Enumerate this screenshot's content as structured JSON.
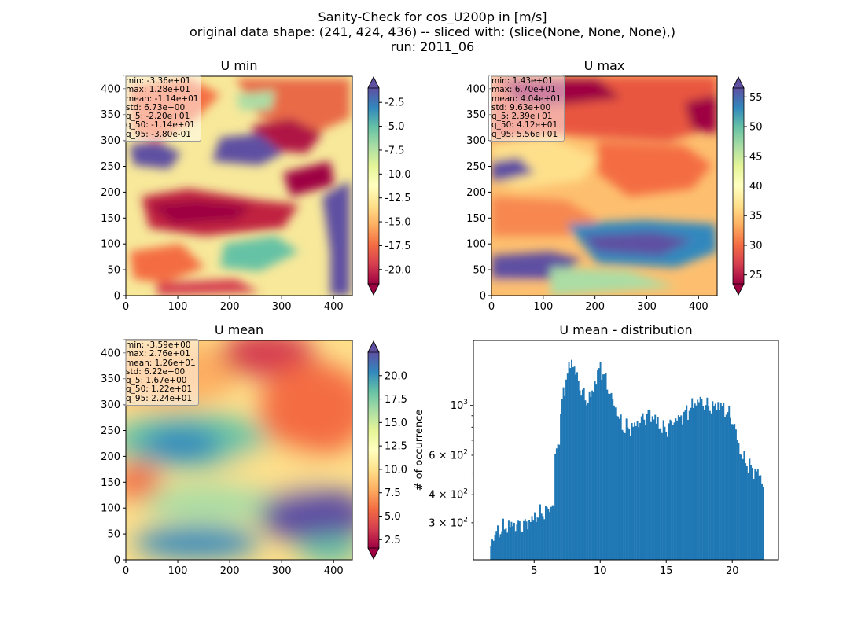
{
  "suptitle": {
    "line1": "Sanity-Check for cos_U200p in [m/s]",
    "line2": "original data shape: (241, 424, 436) -- sliced with: (slice(None, None, None),)",
    "line3": "run: 2011_06"
  },
  "chart_data": [
    {
      "type": "heatmap",
      "title": "U min",
      "xlim": [
        0,
        436
      ],
      "ylim": [
        0,
        424
      ],
      "xticks": [
        0,
        100,
        200,
        300,
        400
      ],
      "yticks": [
        0,
        50,
        100,
        150,
        200,
        250,
        300,
        350,
        400
      ],
      "colormap": "Spectral",
      "colorbar": {
        "vmin": -21.5,
        "vmax": -1.0,
        "ticks": [
          "-2.5",
          "-5.0",
          "-7.5",
          "-10.0",
          "-12.5",
          "-15.0",
          "-17.5",
          "-20.0"
        ],
        "tick_values": [
          -2.5,
          -5.0,
          -7.5,
          -10.0,
          -12.5,
          -15.0,
          -17.5,
          -20.0
        ],
        "extend": "both"
      },
      "stats": [
        "min: -3.36e+01",
        "max: 1.28e+01",
        "mean: -1.14e+01",
        "std: 6.73e+00",
        "q_5: -2.20e+01",
        "q_50: -1.14e+01",
        "q_95: -3.80e-01"
      ]
    },
    {
      "type": "heatmap",
      "title": "U max",
      "xlim": [
        0,
        436
      ],
      "ylim": [
        0,
        424
      ],
      "xticks": [
        0,
        100,
        200,
        300,
        400
      ],
      "yticks": [
        0,
        50,
        100,
        150,
        200,
        250,
        300,
        350,
        400
      ],
      "colormap": "Spectral",
      "colorbar": {
        "vmin": 23.5,
        "vmax": 56.5,
        "ticks": [
          "55",
          "50",
          "45",
          "40",
          "35",
          "30",
          "25"
        ],
        "tick_values": [
          55,
          50,
          45,
          40,
          35,
          30,
          25
        ],
        "extend": "both"
      },
      "stats": [
        "min: 1.43e+01",
        "max: 6.70e+01",
        "mean: 4.04e+01",
        "std: 9.63e+00",
        "q_5: 2.39e+01",
        "q_50: 4.12e+01",
        "q_95: 5.56e+01"
      ]
    },
    {
      "type": "heatmap",
      "title": "U mean",
      "xlim": [
        0,
        436
      ],
      "ylim": [
        0,
        424
      ],
      "xticks": [
        0,
        100,
        200,
        300,
        400
      ],
      "yticks": [
        0,
        50,
        100,
        150,
        200,
        250,
        300,
        350,
        400
      ],
      "colormap": "Spectral",
      "colorbar": {
        "vmin": 1.6,
        "vmax": 22.5,
        "ticks": [
          "20.0",
          "17.5",
          "15.0",
          "12.5",
          "10.0",
          "7.5",
          "5.0",
          "2.5"
        ],
        "tick_values": [
          20.0,
          17.5,
          15.0,
          12.5,
          10.0,
          7.5,
          5.0,
          2.5
        ],
        "extend": "both"
      },
      "stats": [
        "min: -3.59e+00",
        "max: 2.76e+01",
        "mean: 1.26e+01",
        "std: 6.22e+00",
        "q_5: 1.67e+00",
        "q_50: 1.22e+01",
        "q_95: 2.24e+01"
      ]
    },
    {
      "type": "bar",
      "title": "U mean - distribution",
      "ylabel": "# of occurrence",
      "yscale": "log",
      "xlim": [
        0.4,
        23.5
      ],
      "ylim": [
        205,
        1950
      ],
      "xticks": [
        5,
        10,
        15,
        20
      ],
      "yticks": [
        {
          "value": 1000,
          "label": "10",
          "exp": "3"
        },
        {
          "value": 600,
          "label": "6 × 10",
          "exp": "2"
        },
        {
          "value": 400,
          "label": "4 × 10",
          "exp": "2"
        },
        {
          "value": 300,
          "label": "3 × 10",
          "exp": "2"
        }
      ],
      "color": "#1f77b4",
      "bin_range": [
        1.67,
        22.4
      ],
      "profile": [
        [
          1.67,
          225
        ],
        [
          1.8,
          250
        ],
        [
          2.0,
          265
        ],
        [
          2.5,
          280
        ],
        [
          3.0,
          290
        ],
        [
          3.5,
          295
        ],
        [
          4.0,
          290
        ],
        [
          4.5,
          300
        ],
        [
          5.0,
          315
        ],
        [
          5.5,
          330
        ],
        [
          6.0,
          340
        ],
        [
          6.3,
          355
        ],
        [
          6.5,
          360
        ],
        [
          6.6,
          600
        ],
        [
          6.9,
          720
        ],
        [
          7.2,
          1150
        ],
        [
          7.5,
          1350
        ],
        [
          7.8,
          1600
        ],
        [
          8.0,
          1500
        ],
        [
          8.3,
          1300
        ],
        [
          8.6,
          1150
        ],
        [
          9.0,
          1050
        ],
        [
          9.3,
          1100
        ],
        [
          9.6,
          1250
        ],
        [
          10.0,
          1500
        ],
        [
          10.3,
          1350
        ],
        [
          10.7,
          1150
        ],
        [
          11.2,
          950
        ],
        [
          11.7,
          800
        ],
        [
          12.2,
          790
        ],
        [
          12.7,
          820
        ],
        [
          13.2,
          870
        ],
        [
          13.7,
          920
        ],
        [
          14.1,
          880
        ],
        [
          14.6,
          800
        ],
        [
          15.0,
          780
        ],
        [
          15.5,
          850
        ],
        [
          16.0,
          880
        ],
        [
          16.5,
          930
        ],
        [
          17.0,
          1000
        ],
        [
          17.5,
          1060
        ],
        [
          18.0,
          1000
        ],
        [
          18.5,
          980
        ],
        [
          19.0,
          1010
        ],
        [
          19.5,
          950
        ],
        [
          20.0,
          870
        ],
        [
          20.3,
          750
        ],
        [
          20.6,
          620
        ],
        [
          21.0,
          560
        ],
        [
          21.5,
          520
        ],
        [
          22.0,
          500
        ],
        [
          22.4,
          440
        ]
      ]
    }
  ]
}
